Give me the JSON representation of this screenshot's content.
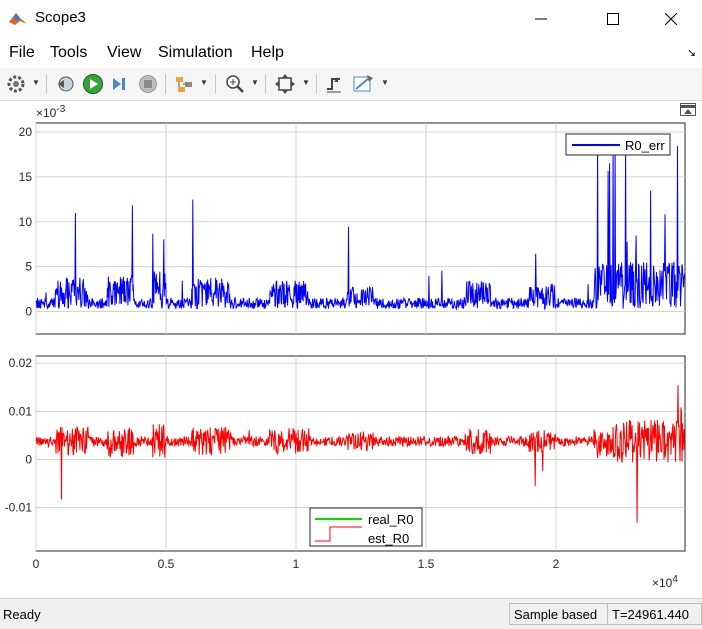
{
  "window": {
    "title": "Scope3"
  },
  "menu": [
    "File",
    "Tools",
    "View",
    "Simulation",
    "Help"
  ],
  "toolbar_icons": [
    "settings-icon",
    "step-back-icon",
    "run-icon",
    "step-forward-icon",
    "stop-icon",
    "layout-icon",
    "zoom-in-icon",
    "autoscale-icon",
    "triggers-icon",
    "measurements-icon"
  ],
  "colors": {
    "err": "#0000ff",
    "real": "#00dd00",
    "est": "#ff0000"
  },
  "status": {
    "ready": "Ready",
    "mode": "Sample based",
    "time": "T=24961.440"
  },
  "chart_data": [
    {
      "type": "line",
      "y_exponent": "-3",
      "ylim": [
        -2.5,
        21
      ],
      "yticks": [
        0,
        5,
        10,
        15,
        20
      ],
      "ytick_labels": [
        "0",
        "5",
        "10",
        "15",
        "20"
      ],
      "xlim": [
        0,
        24961.44
      ],
      "grid": true,
      "legend_position": "top-right",
      "series": [
        {
          "name": "R0_err",
          "color": "#0000ff"
        }
      ]
    },
    {
      "type": "line",
      "ylim": [
        -0.019,
        0.0215
      ],
      "yticks": [
        0.02,
        0.01,
        0,
        -0.01
      ],
      "ytick_labels": [
        "0.02",
        "0.01",
        "0",
        "-0.01"
      ],
      "xlim": [
        0,
        24961.44
      ],
      "x_exponent": "4",
      "xticks": [
        0,
        5000,
        10000,
        15000,
        20000
      ],
      "xtick_labels": [
        "0",
        "0.5",
        "1",
        "1.5",
        "2"
      ],
      "grid": true,
      "legend_position": "bottom-center",
      "series": [
        {
          "name": "real_R0",
          "color": "#00dd00"
        },
        {
          "name": "est_R0",
          "color": "#ff0000"
        }
      ]
    }
  ]
}
